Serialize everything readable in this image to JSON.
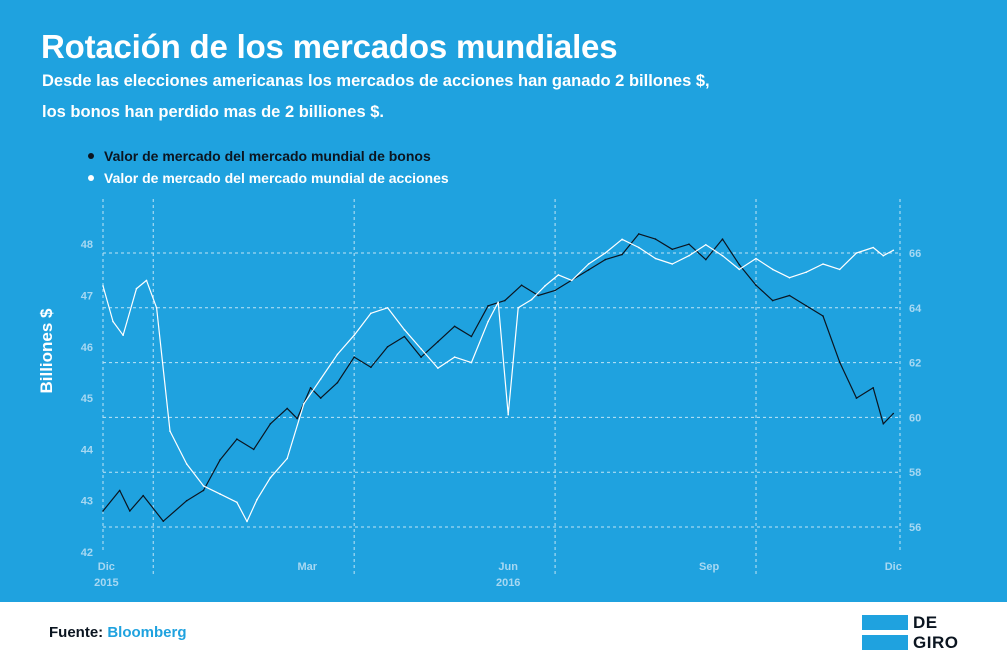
{
  "header": {
    "title": "Rotación de los mercados mundiales",
    "subtitle_line1": "Desde las elecciones americanas los mercados de acciones han ganado 2 billones $,",
    "subtitle_line2": "los bonos han perdido mas de 2 billiones $."
  },
  "legend": {
    "bonds": "Valor de mercado del mercado mundial de bonos",
    "stocks": "Valor de mercado del mercado mundial de acciones"
  },
  "footer": {
    "source_label": "Fuente:",
    "source_name": "Bloomberg",
    "logo_line1": "DE",
    "logo_line2": "GIRO"
  },
  "colors": {
    "background": "#1fa2df",
    "bonds_line": "#0b1520",
    "stocks_line": "#ffffff",
    "axis_text": "#a7d8f2",
    "grid": "#bfe4f6"
  },
  "chart_data": {
    "type": "line",
    "title": "Rotación de los mercados mundiales",
    "ylabel": "Billiones $",
    "ylim_left": [
      42,
      48
    ],
    "ylim_right": [
      56,
      66
    ],
    "left_ticks": [
      "42",
      "43",
      "44",
      "45",
      "46",
      "47",
      "48"
    ],
    "right_ticks": [
      "56",
      "58",
      "60",
      "62",
      "64",
      "66"
    ],
    "x_ticks": [
      {
        "label": "Dic",
        "year": "2015",
        "i": 1
      },
      {
        "label": "Mar",
        "year": "",
        "i": 61
      },
      {
        "label": "Jun",
        "year": "2016",
        "i": 121
      },
      {
        "label": "Sep",
        "year": "",
        "i": 181
      },
      {
        "label": "Dic",
        "year": "",
        "i": 236
      }
    ],
    "x_range": [
      0,
      238
    ],
    "x_gridlines": [
      15,
      75,
      135,
      195
    ],
    "x_note": "x values are approximate trading-day indices from late Nov 2015 to Dec 2016",
    "series": [
      {
        "name": "Valor de mercado del mercado mundial de bonos",
        "axis": "left",
        "x": [
          0,
          5,
          8,
          12,
          18,
          25,
          30,
          35,
          40,
          45,
          50,
          55,
          58,
          62,
          65,
          70,
          75,
          80,
          85,
          90,
          95,
          100,
          105,
          110,
          115,
          120,
          125,
          130,
          135,
          140,
          145,
          150,
          155,
          160,
          165,
          170,
          175,
          180,
          185,
          190,
          195,
          200,
          205,
          210,
          215,
          220,
          225,
          230,
          233,
          236
        ],
        "values": [
          42.8,
          43.2,
          42.8,
          43.1,
          42.6,
          43.0,
          43.2,
          43.8,
          44.2,
          44.0,
          44.5,
          44.8,
          44.6,
          45.2,
          45.0,
          45.3,
          45.8,
          45.6,
          46.0,
          46.2,
          45.8,
          46.1,
          46.4,
          46.2,
          46.8,
          46.9,
          47.2,
          47.0,
          47.1,
          47.3,
          47.5,
          47.7,
          47.8,
          48.2,
          48.1,
          47.9,
          48.0,
          47.7,
          48.1,
          47.6,
          47.2,
          46.9,
          47.0,
          46.8,
          46.6,
          45.7,
          45.0,
          45.2,
          44.5,
          44.7
        ]
      },
      {
        "name": "Valor de mercado del mercado mundial de acciones",
        "axis": "right",
        "x": [
          0,
          3,
          6,
          10,
          13,
          16,
          20,
          25,
          30,
          35,
          40,
          43,
          46,
          50,
          55,
          60,
          65,
          70,
          75,
          80,
          85,
          90,
          95,
          100,
          105,
          110,
          115,
          118,
          121,
          124,
          128,
          132,
          136,
          140,
          145,
          150,
          155,
          160,
          165,
          170,
          175,
          180,
          185,
          190,
          195,
          200,
          205,
          210,
          215,
          220,
          225,
          230,
          233,
          236
        ],
        "values": [
          64.8,
          63.5,
          63.0,
          64.7,
          65.0,
          64.0,
          59.5,
          58.3,
          57.5,
          57.2,
          56.9,
          56.2,
          57.0,
          57.8,
          58.5,
          60.5,
          61.4,
          62.3,
          63.0,
          63.8,
          64.0,
          63.2,
          62.5,
          61.8,
          62.2,
          62.0,
          63.5,
          64.2,
          60.1,
          64.0,
          64.3,
          64.8,
          65.2,
          65.0,
          65.6,
          66.0,
          66.5,
          66.2,
          65.8,
          65.6,
          65.9,
          66.3,
          65.9,
          65.4,
          65.8,
          65.4,
          65.1,
          65.3,
          65.6,
          65.4,
          66.0,
          66.2,
          65.9,
          66.1
        ]
      }
    ]
  }
}
